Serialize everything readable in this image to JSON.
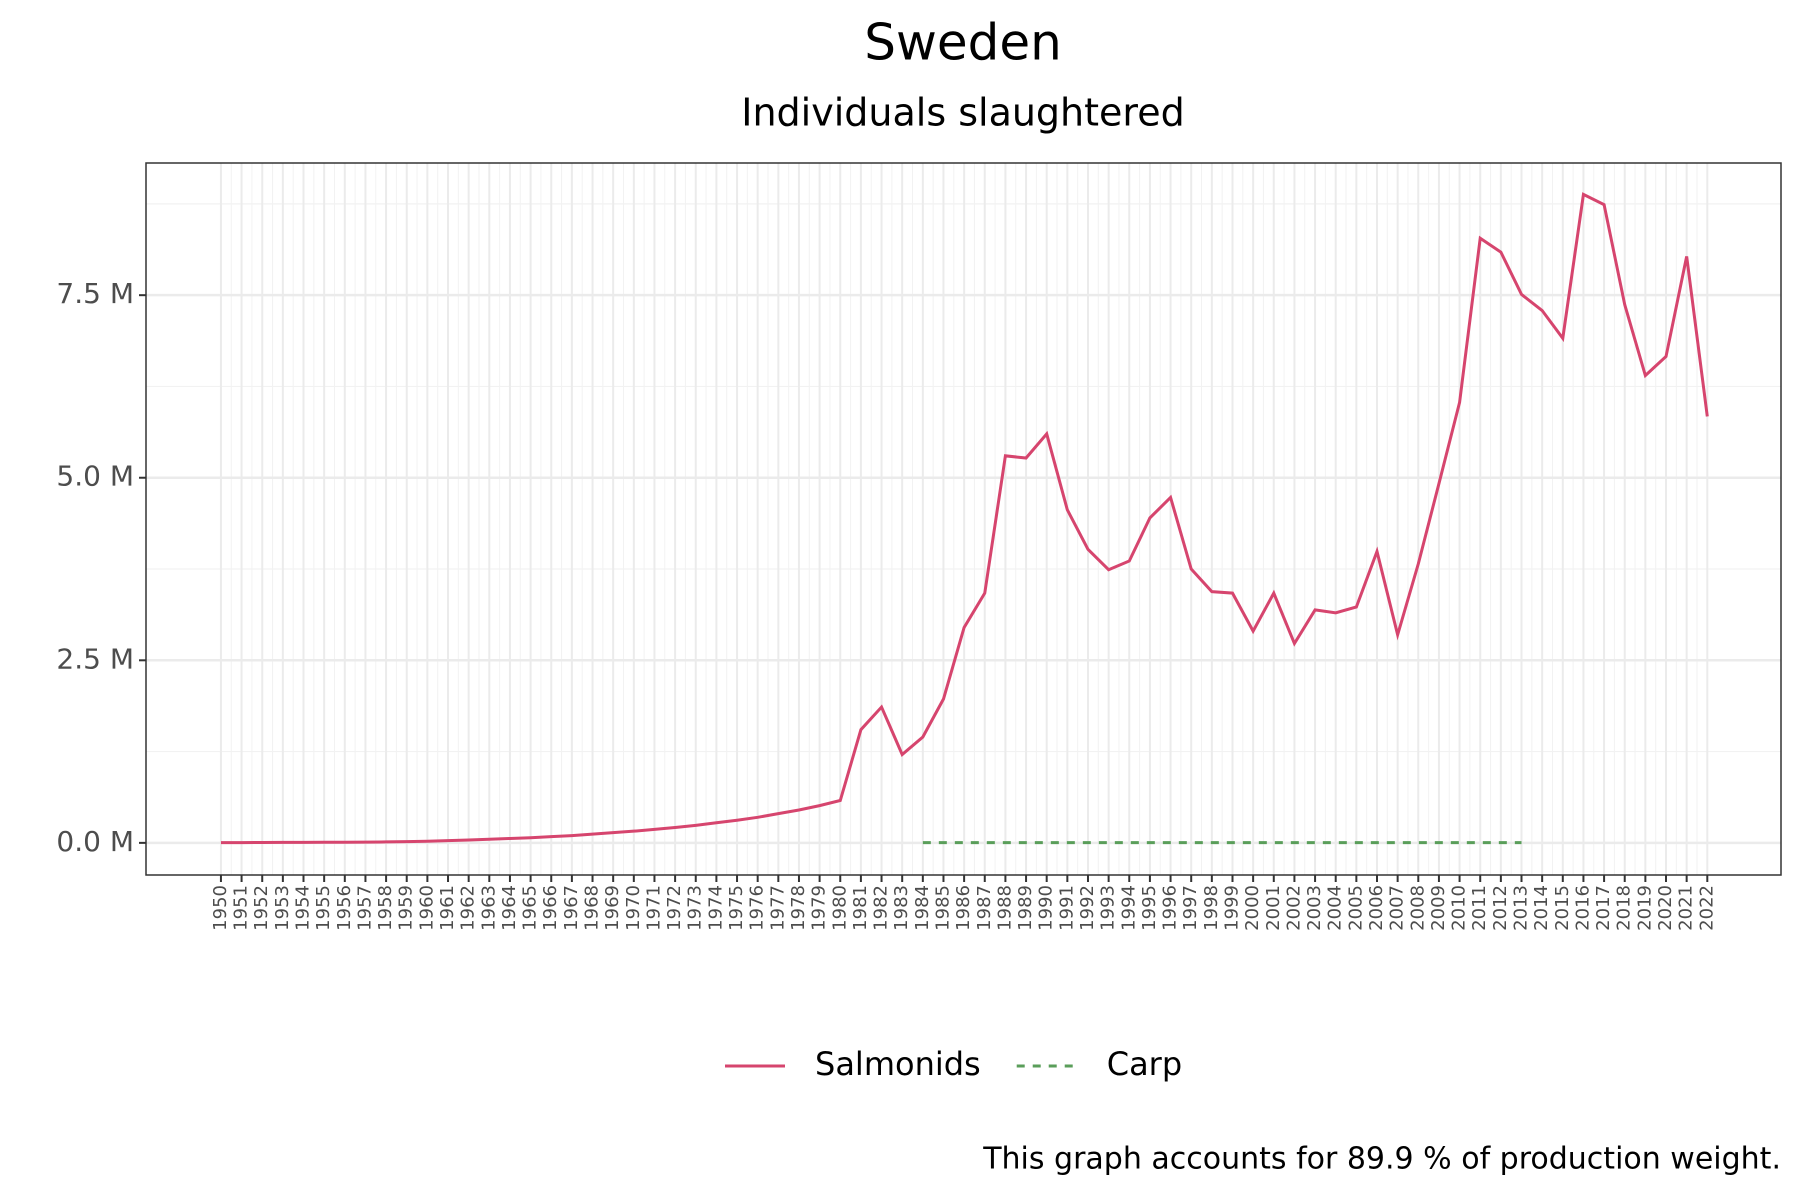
{
  "chart_data": {
    "type": "line",
    "title": "Sweden",
    "subtitle": "Individuals slaughtered",
    "caption": "This graph accounts for 89.9 % of production weight.",
    "x": [
      1950,
      1951,
      1952,
      1953,
      1954,
      1955,
      1956,
      1957,
      1958,
      1959,
      1960,
      1961,
      1962,
      1963,
      1964,
      1965,
      1966,
      1967,
      1968,
      1969,
      1970,
      1971,
      1972,
      1973,
      1974,
      1975,
      1976,
      1977,
      1978,
      1979,
      1980,
      1981,
      1982,
      1983,
      1984,
      1985,
      1986,
      1987,
      1988,
      1989,
      1990,
      1991,
      1992,
      1993,
      1994,
      1995,
      1996,
      1997,
      1998,
      1999,
      2000,
      2001,
      2002,
      2003,
      2004,
      2005,
      2006,
      2007,
      2008,
      2009,
      2010,
      2011,
      2012,
      2013,
      2014,
      2015,
      2016,
      2017,
      2018,
      2019,
      2020,
      2021,
      2022
    ],
    "xlim": [
      1946.37,
      2025.57
    ],
    "ylim": [
      -440000,
      9310000
    ],
    "yticks": [
      {
        "value": 0,
        "label": "0.0 M"
      },
      {
        "value": 2500000,
        "label": "2.5 M"
      },
      {
        "value": 5000000,
        "label": "5.0 M"
      },
      {
        "value": 7500000,
        "label": "7.5 M"
      }
    ],
    "grid": true,
    "legend": "bottom",
    "series": [
      {
        "name": "Salmonids",
        "color": "#d6456e",
        "linetype": "solid",
        "values": [
          3000,
          4000,
          5000,
          6000,
          7000,
          8000,
          9000,
          11000,
          13000,
          17000,
          22000,
          30000,
          40000,
          50000,
          60000,
          70000,
          85000,
          100000,
          120000,
          140000,
          160000,
          185000,
          210000,
          240000,
          275000,
          310000,
          350000,
          400000,
          450000,
          510000,
          580000,
          1550000,
          1860000,
          1210000,
          1450000,
          1970000,
          2950000,
          3420000,
          5300000,
          5270000,
          5600000,
          4560000,
          4020000,
          3740000,
          3860000,
          4450000,
          4730000,
          3750000,
          3440000,
          3420000,
          2900000,
          3420000,
          2730000,
          3190000,
          3150000,
          3230000,
          3990000,
          2850000,
          3820000,
          4920000,
          6030000,
          8280000,
          8090000,
          7510000,
          7290000,
          6910000,
          8880000,
          8740000,
          7370000,
          6400000,
          6660000,
          8030000,
          5840000
        ]
      },
      {
        "name": "Carp",
        "color": "#5a9e5a",
        "linetype": "dashed",
        "values": [
          null,
          null,
          null,
          null,
          null,
          null,
          null,
          null,
          null,
          null,
          null,
          null,
          null,
          null,
          null,
          null,
          null,
          null,
          null,
          null,
          null,
          null,
          null,
          null,
          null,
          null,
          null,
          null,
          null,
          null,
          null,
          null,
          null,
          null,
          3000,
          3000,
          3000,
          3000,
          3000,
          3000,
          3000,
          3000,
          3000,
          3000,
          3000,
          3000,
          3000,
          3000,
          3000,
          3000,
          3000,
          3000,
          3000,
          3000,
          3000,
          3000,
          3000,
          3000,
          3000,
          3000,
          3000,
          3000,
          3000,
          3000,
          null,
          null,
          null,
          null,
          null,
          null,
          null,
          null,
          null
        ]
      }
    ]
  }
}
